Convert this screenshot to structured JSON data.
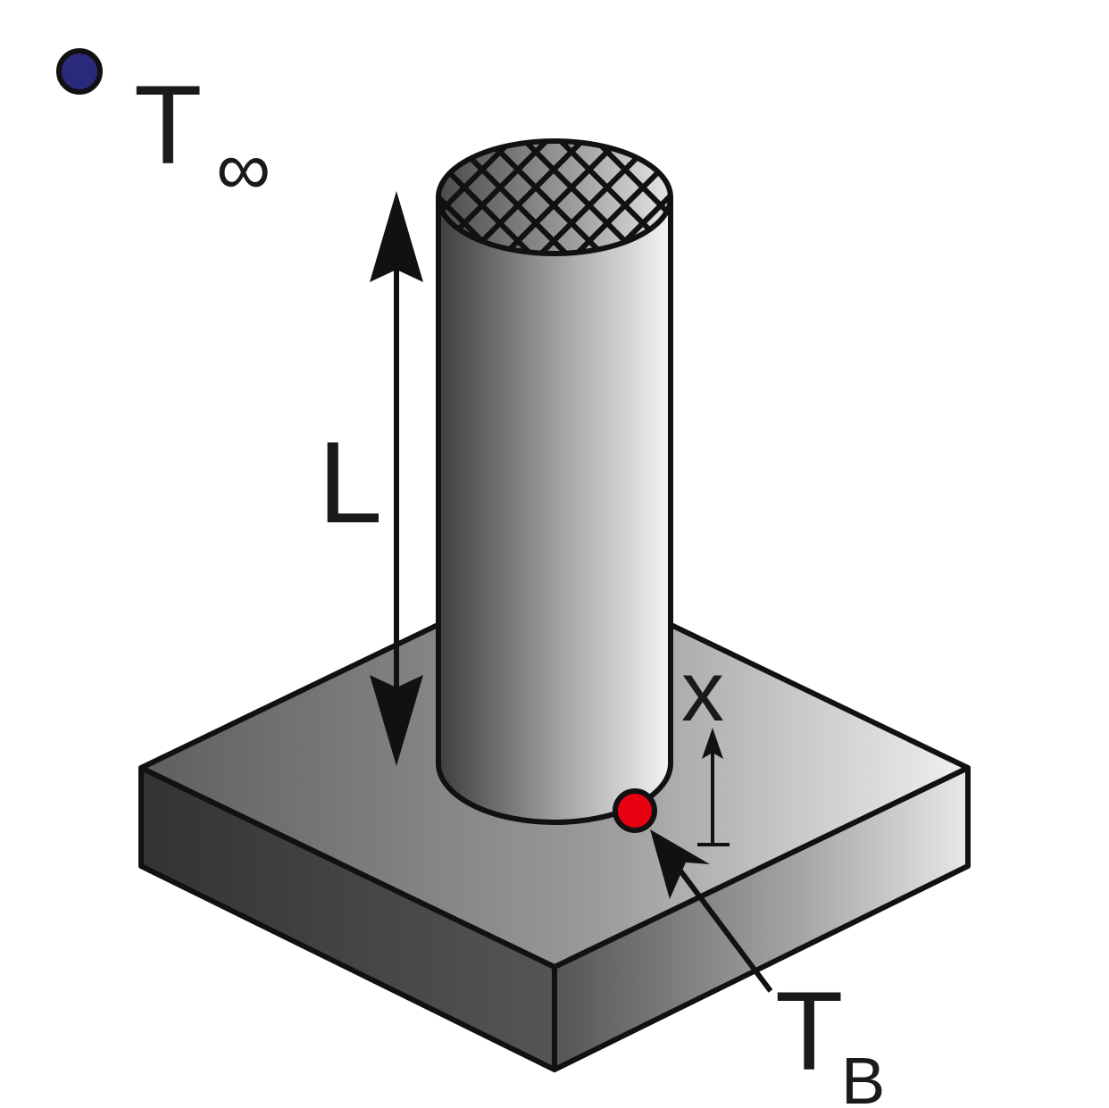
{
  "labels": {
    "ambient_symbol": "T",
    "ambient_subscript": "∞",
    "length_label": "L",
    "position_label": "x",
    "base_symbol": "T",
    "base_subscript": "B"
  },
  "colors": {
    "ambient_marker": "#2a2a7a",
    "base_marker": "#e60012",
    "outline": "#111111"
  },
  "icons": {
    "ambient_marker": "navy-dot-icon",
    "base_marker": "red-dot-icon",
    "length_arrow": "double-headed-arrow-icon",
    "position_arrow": "up-arrow-icon",
    "pointer_arrow": "pointer-arrow-icon"
  }
}
